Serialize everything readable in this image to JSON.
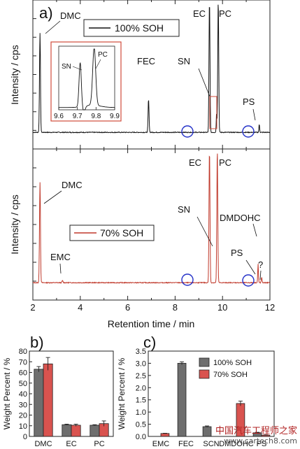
{
  "figure": {
    "panel_labels": {
      "a": "a)",
      "b": "b)",
      "c": "c)"
    },
    "watermark": {
      "line1": "中国汽车工程师之家",
      "line2": "www.cartech8.com"
    }
  },
  "chart_data": [
    {
      "id": "a-top",
      "type": "line",
      "panel": "a)",
      "ylabel": "Intensity / cps",
      "xlim": [
        2,
        12
      ],
      "legend": {
        "label": "100% SOH",
        "color": "#111111",
        "position": "top-center"
      },
      "color": "#111111",
      "baseline": 0.05,
      "peaks": [
        {
          "x": 2.3,
          "height": 1.5,
          "width": 0.02,
          "label": "DMC"
        },
        {
          "x": 6.88,
          "height": 0.5,
          "width": 0.02,
          "label": "FEC"
        },
        {
          "x": 9.45,
          "height": 2.0,
          "width": 0.02,
          "label": "EC"
        },
        {
          "x": 9.75,
          "height": 0.3,
          "width": 0.015,
          "label": "SN"
        },
        {
          "x": 9.82,
          "height": 2.0,
          "width": 0.02,
          "label": "PC"
        },
        {
          "x": 11.55,
          "height": 0.12,
          "width": 0.015,
          "label": "PS"
        }
      ],
      "annotations": [
        "DMC",
        "FEC",
        "EC",
        "PC",
        "SN",
        "PS"
      ],
      "highlight_circles_x": [
        8.65,
        11.2
      ],
      "inset": {
        "xlim": [
          9.6,
          9.9
        ],
        "xticks": [
          "9.6",
          "9.7",
          "9.8",
          "9.9"
        ],
        "peaks": [
          {
            "x": 9.715,
            "height": 0.75,
            "label": "SN"
          },
          {
            "x": 9.79,
            "height": 1.0,
            "label": "PC"
          }
        ]
      }
    },
    {
      "id": "a-bottom",
      "type": "line",
      "xlabel": "Retention time / min",
      "ylabel": "Intensity / cps",
      "xlim": [
        2,
        12
      ],
      "xticks": [
        "2",
        "4",
        "6",
        "8",
        "10",
        "12"
      ],
      "legend": {
        "label": "70% SOH",
        "color": "#c0392b",
        "position": "center-left"
      },
      "color": "#c0392b",
      "baseline": 0.05,
      "peaks": [
        {
          "x": 2.3,
          "height": 1.5,
          "width": 0.02,
          "label": "DMC"
        },
        {
          "x": 3.25,
          "height": 0.03,
          "width": 0.02,
          "label": "EMC"
        },
        {
          "x": 9.45,
          "height": 2.0,
          "width": 0.02,
          "label": "EC"
        },
        {
          "x": 9.78,
          "height": 2.0,
          "width": 0.02,
          "label": "PC"
        },
        {
          "x": 11.5,
          "height": 0.28,
          "width": 0.015,
          "label": "DMDOHC"
        },
        {
          "x": 11.65,
          "height": 0.08,
          "width": 0.015,
          "label": "PS"
        }
      ],
      "annotations": [
        "DMC",
        "EMC",
        "EC",
        "PC",
        "SN",
        "DMDOHC",
        "PS",
        "?"
      ],
      "highlight_circles_x": [
        8.65,
        11.2
      ]
    },
    {
      "id": "b",
      "type": "bar",
      "panel": "b)",
      "ylabel": "Weight Percent / %",
      "categories": [
        "DMC",
        "EC",
        "PC"
      ],
      "ylim": [
        0,
        80
      ],
      "yticks": [
        "0",
        "10",
        "20",
        "30",
        "40",
        "50",
        "60",
        "70",
        "80"
      ],
      "series": [
        {
          "color": "#6e6e6e",
          "values": [
            63,
            11,
            10.5
          ],
          "errors": [
            2.5,
            0.5,
            0.5
          ]
        },
        {
          "color": "#d9534f",
          "values": [
            68,
            10.5,
            12
          ],
          "errors": [
            6,
            1,
            2.5
          ]
        }
      ]
    },
    {
      "id": "c",
      "type": "bar",
      "panel": "c)",
      "ylabel": "Weight Percent / %",
      "categories": [
        "EMC",
        "FEC",
        "SCN",
        "DMDOHC",
        "PS"
      ],
      "ylim": [
        0,
        3.5
      ],
      "yticks": [
        "0.0",
        "0.5",
        "1.0",
        "1.5",
        "2.0",
        "2.5",
        "3.0",
        "3.5"
      ],
      "legend": {
        "position": "top-right"
      },
      "series": [
        {
          "name": "100% SOH",
          "color": "#6e6e6e",
          "values": [
            0,
            3.0,
            0.4,
            0,
            0.15
          ],
          "errors": [
            0,
            0.06,
            0.03,
            0,
            0.02
          ]
        },
        {
          "name": "70% SOH",
          "color": "#d9534f",
          "values": [
            0.12,
            0,
            0,
            1.35,
            0.05
          ],
          "errors": [
            0.01,
            0,
            0,
            0.1,
            0.01
          ]
        }
      ]
    }
  ]
}
